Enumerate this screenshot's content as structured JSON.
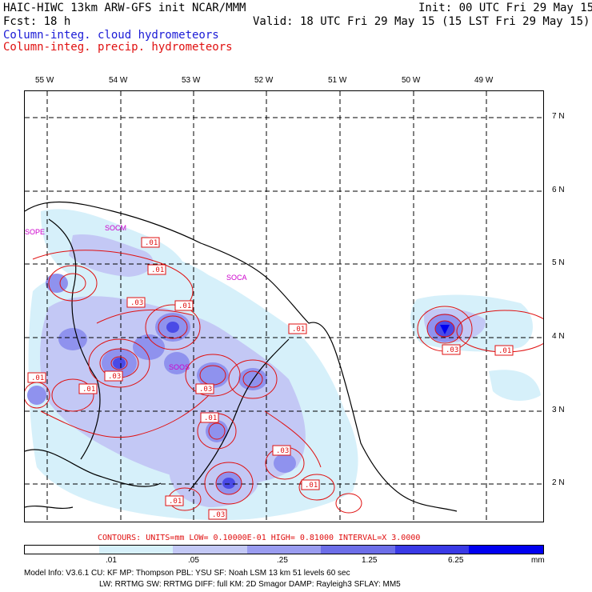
{
  "header": {
    "line1_left": "HAIC-HIWC 13km ARW-GFS init   NCAR/MMM",
    "line1_right": "Init: 00 UTC Fri 29 May 15",
    "line2_left": "Fcst:   18 h",
    "line2_right": "Valid: 18 UTC Fri 29 May 15 (15 LST Fri 29 May 15)",
    "line3": "Column-integ. cloud hydrometeors",
    "line4": "Column-integ. precip. hydrometeors",
    "line3_color": "#1a1ad6",
    "line4_color": "#e01010"
  },
  "map": {
    "lon_labels": [
      "55 W",
      "54 W",
      "53 W",
      "52 W",
      "51 W",
      "50 W",
      "49 W"
    ],
    "lat_labels": [
      "7 N",
      "6 N",
      "5 N",
      "4 N",
      "3 N",
      "2 N"
    ],
    "place_labels": [
      "SOCM",
      "SOCA",
      "SOOS",
      "SOPE"
    ],
    "place_color": "#cc00cc",
    "contour_labels": [
      ".01",
      ".01",
      ".03",
      ".01",
      ".01",
      ".03",
      ".01",
      ".03",
      ".01",
      ".01",
      ".03",
      ".01",
      ".03",
      ".01",
      ".01",
      ".03",
      ".01"
    ],
    "contour_color": "#e01010",
    "coast_color": "#000000"
  },
  "contour_info": "CONTOURS:  UNITS=mm  LOW= 0.10000E-01  HIGH= 0.81000      INTERVAL=X  3.0000",
  "colorbar": {
    "labels": [
      ".01",
      ".05",
      ".25",
      "1.25",
      "6.25",
      "mm"
    ],
    "colors": [
      "#ffffff",
      "#d6f0fa",
      "#c3c8f5",
      "#9a9cf0",
      "#6d6ee8",
      "#3a3ae6",
      "#0000f0"
    ]
  },
  "footer": {
    "line1": "Model Info: V3.6.1    CU: KF     MP: Thompson    PBL: YSU      SF: Noah LSM    13 km   51 levels  60 sec",
    "line2": "LW: RRTMG   SW: RRTMG  DIFF: full   KM: 2D Smagor DAMP: Rayleigh3  SFLAY: MM5"
  }
}
